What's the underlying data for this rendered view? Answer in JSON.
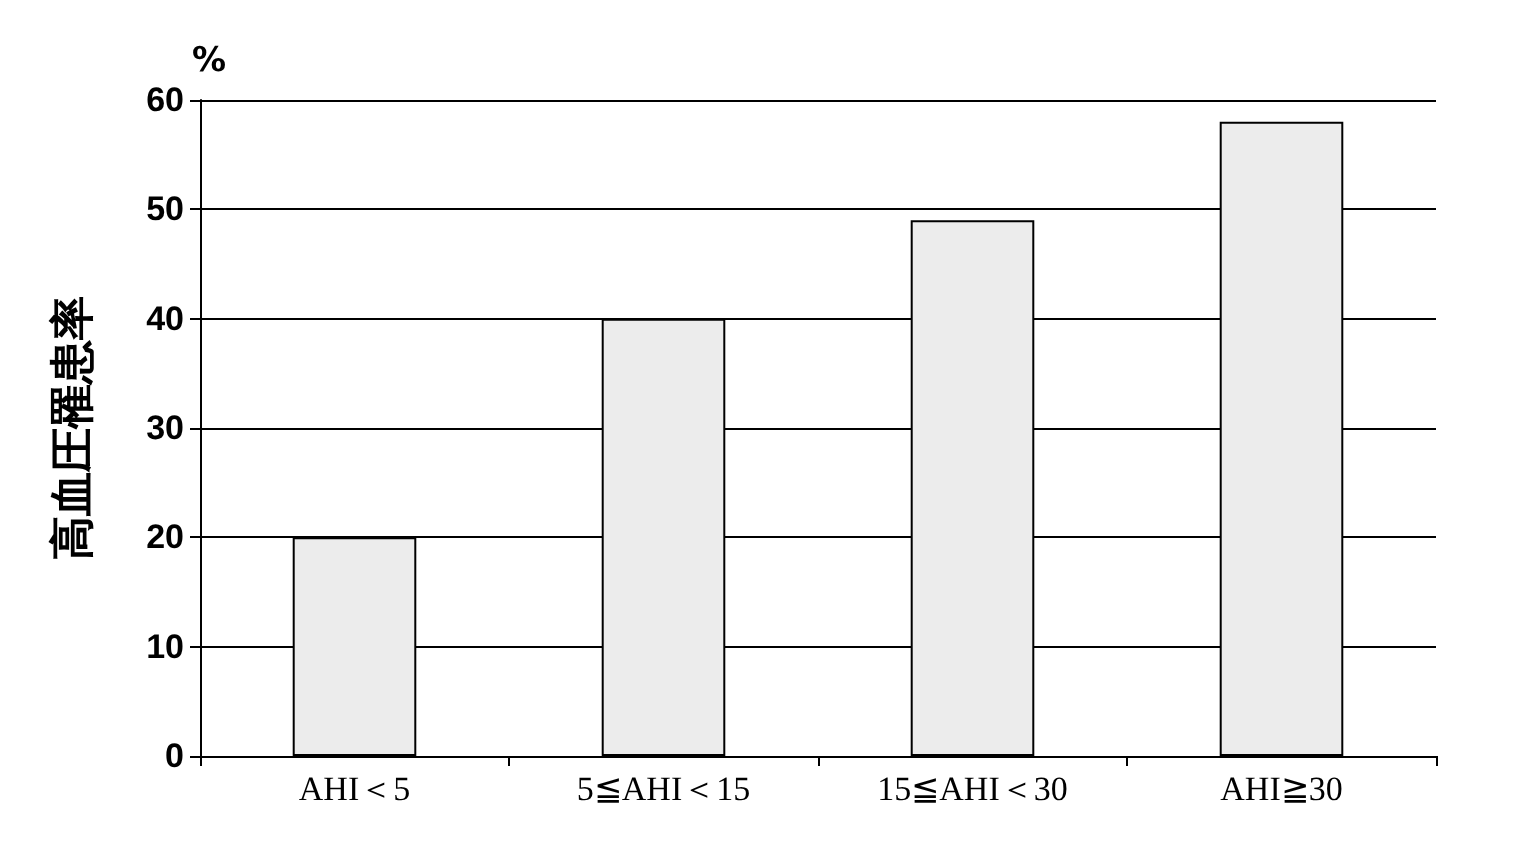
{
  "chart_data": {
    "type": "bar",
    "ylabel": "高血圧罹患率",
    "annotations": [
      "%"
    ],
    "categories": [
      "AHI＜5",
      "5≦AHI＜15",
      "15≦AHI＜30",
      "AHI≧30"
    ],
    "values": [
      20,
      40,
      49,
      58
    ],
    "color": "#ececec",
    "ylim": [
      0,
      60
    ],
    "yticks": [
      0,
      10,
      20,
      30,
      40,
      50,
      60
    ],
    "grid": "y"
  }
}
